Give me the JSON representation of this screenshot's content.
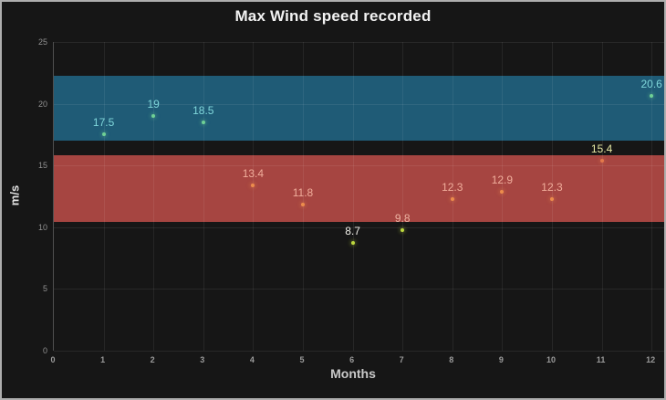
{
  "chart_data": {
    "type": "scatter",
    "title": "Max Wind speed recorded",
    "xlabel": "Months",
    "ylabel": "m/s",
    "xlim": [
      0,
      12.29
    ],
    "ylim": [
      0,
      25
    ],
    "x_ticks": [
      0,
      1,
      2,
      3,
      4,
      5,
      6,
      7,
      8,
      9,
      10,
      11,
      12
    ],
    "y_ticks": [
      0,
      5,
      10,
      15,
      20,
      25
    ],
    "grid": true,
    "legend": "none",
    "bands": [
      {
        "name": "upper-threshold-band",
        "from": 17.0,
        "to": 22.25,
        "color": "#1f5b76"
      },
      {
        "name": "lower-threshold-band",
        "from": 10.45,
        "to": 15.85,
        "color": "#a64541"
      }
    ],
    "points": [
      {
        "x": 1,
        "y": 17.5,
        "label": "17.5",
        "dot_color": "#6fd095",
        "label_color": "#7fd6da"
      },
      {
        "x": 2,
        "y": 19,
        "label": "19",
        "dot_color": "#6fd095",
        "label_color": "#7fd6da"
      },
      {
        "x": 3,
        "y": 18.5,
        "label": "18.5",
        "dot_color": "#6fd095",
        "label_color": "#7fd6da"
      },
      {
        "x": 4,
        "y": 13.4,
        "label": "13.4",
        "dot_color": "#ec8c4c",
        "label_color": "#f0ad9b"
      },
      {
        "x": 5,
        "y": 11.8,
        "label": "11.8",
        "dot_color": "#ec8c4c",
        "label_color": "#f0ad9b"
      },
      {
        "x": 6,
        "y": 8.7,
        "label": "8.7",
        "dot_color": "#bdd83e",
        "label_color": "#f1f0ea"
      },
      {
        "x": 7,
        "y": 9.8,
        "label": "9.8",
        "dot_color": "#bdd83e",
        "label_color": "#edb3a2"
      },
      {
        "x": 8,
        "y": 12.3,
        "label": "12.3",
        "dot_color": "#ec8c4c",
        "label_color": "#f0ad9b"
      },
      {
        "x": 9,
        "y": 12.9,
        "label": "12.9",
        "dot_color": "#ec8c4c",
        "label_color": "#f0ad9b"
      },
      {
        "x": 10,
        "y": 12.3,
        "label": "12.3",
        "dot_color": "#ec8c4c",
        "label_color": "#f0ad9b"
      },
      {
        "x": 11,
        "y": 15.4,
        "label": "15.4",
        "dot_color": "#e3794a",
        "label_color": "#e7e9a4"
      },
      {
        "x": 12,
        "y": 20.6,
        "label": "20.6",
        "dot_color": "#6fd095",
        "label_color": "#7fd6da"
      }
    ]
  },
  "colors": {
    "background": "#161616",
    "frame_border": "#aeaeae",
    "title_text": "#f2f2f2",
    "grid": "rgba(255,255,255,0.08)",
    "axis_line": "#4f4f4f",
    "tick_text": "#9b9b9b"
  }
}
